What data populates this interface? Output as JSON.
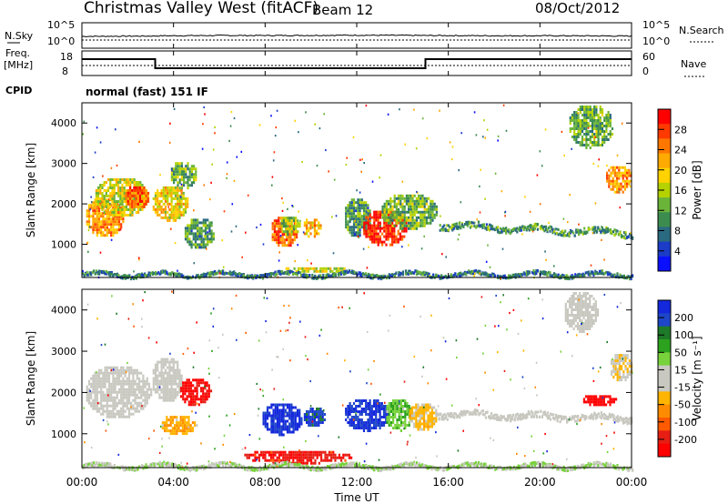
{
  "header": {
    "title": "Christmas Valley West (fitACF)",
    "beam": "Beam 12",
    "date": "08/Oct/2012"
  },
  "labels": {
    "nsky": "N.Sky",
    "freq_line1": "Freq.",
    "freq_line2": "[MHz]",
    "cpid": "CPID",
    "nsearch": "N.Search",
    "nave": "Nave",
    "cpid_value": "normal (fast) 151 IF",
    "nsky_ticks": [
      "10^5",
      "10^0"
    ],
    "freq_ticks": [
      "18",
      "8"
    ],
    "nsearch_ticks": [
      "10^5",
      "10^0"
    ],
    "nave_ticks": [
      "60",
      "0"
    ]
  },
  "colorbars": {
    "power": {
      "label": "Power [dB]",
      "ticks": [
        "28",
        "24",
        "20",
        "16",
        "12",
        "8",
        "4"
      ],
      "colors": [
        "#ff0000",
        "#ff3a00",
        "#ff7700",
        "#ffaa00",
        "#ffd200",
        "#b4d200",
        "#6ab43a",
        "#3c8c50",
        "#2a6a80",
        "#1c3cc8",
        "#0a10ff"
      ]
    },
    "velocity": {
      "label": "Velocity [m s⁻¹]",
      "ticks": [
        "200",
        "100",
        "50",
        "15",
        "-15",
        "-50",
        "-100",
        "-200"
      ],
      "colors": [
        "#1428dc",
        "#1e46c8",
        "#1e7a28",
        "#2ca21e",
        "#78d23c",
        "#c8c8c0",
        "#c8c8c0",
        "#ffb400",
        "#ff8c00",
        "#ff5a00",
        "#e61e14",
        "#ff0000"
      ]
    }
  },
  "axes": {
    "ylabel": "Slant Range [km]",
    "yticks": [
      "4000",
      "3000",
      "2000",
      "1000"
    ],
    "xlabel": "Time UT",
    "xticks": [
      "00:00",
      "04:00",
      "08:00",
      "12:00",
      "16:00",
      "20:00",
      "00:00"
    ]
  },
  "chart_data": [
    {
      "type": "line",
      "panel": "N.Sky / N.Search (log)",
      "y_ticks": [
        "10^0",
        "10^5"
      ],
      "x": [
        0,
        3,
        3.5,
        6,
        9,
        12,
        15,
        18,
        21,
        24
      ],
      "nsky": [
        2.2,
        2.3,
        2.4,
        2.5,
        2.5,
        2.6,
        2.5,
        2.4,
        2.4,
        2.3
      ]
    },
    {
      "type": "line",
      "panel": "Freq [MHz] / Nave",
      "freq_ylim": [
        8,
        18
      ],
      "nave_ylim": [
        0,
        60
      ],
      "segments": [
        {
          "start_hr": 0,
          "end_hr": 3.2,
          "freq_mhz": 15.5
        },
        {
          "start_hr": 3.2,
          "end_hr": 15.0,
          "freq_mhz": 10.5
        },
        {
          "start_hr": 15.0,
          "end_hr": 24,
          "freq_mhz": 15.5
        }
      ],
      "nave_level": 20
    },
    {
      "type": "heatmap",
      "panel": "Power [dB]",
      "xlim_hr": [
        0,
        24
      ],
      "ylim_km": [
        180,
        4500
      ],
      "clim": [
        0,
        30
      ],
      "blobs": [
        {
          "t0": 0.1,
          "t1": 1.8,
          "r0": 1200,
          "r1": 2200,
          "value": 22
        },
        {
          "t0": 0.5,
          "t1": 2.9,
          "r0": 1700,
          "r1": 2700,
          "value": 16
        },
        {
          "t0": 1.8,
          "t1": 2.9,
          "r0": 1900,
          "r1": 2500,
          "value": 24
        },
        {
          "t0": 3.0,
          "t1": 4.6,
          "r0": 1600,
          "r1": 2500,
          "value": 18
        },
        {
          "t0": 3.8,
          "t1": 5.0,
          "r0": 2400,
          "r1": 3100,
          "value": 12
        },
        {
          "t0": 4.4,
          "t1": 5.8,
          "r0": 900,
          "r1": 1700,
          "value": 10
        },
        {
          "t0": 8.2,
          "t1": 9.4,
          "r0": 950,
          "r1": 1750,
          "value": 24
        },
        {
          "t0": 8.6,
          "t1": 9.5,
          "r0": 1250,
          "r1": 1750,
          "value": 14
        },
        {
          "t0": 9.6,
          "t1": 10.4,
          "r0": 1200,
          "r1": 1700,
          "value": 20
        },
        {
          "t0": 11.4,
          "t1": 12.6,
          "r0": 1200,
          "r1": 2200,
          "value": 10
        },
        {
          "t0": 12.2,
          "t1": 14.2,
          "r0": 1000,
          "r1": 1900,
          "value": 28
        },
        {
          "t0": 13.0,
          "t1": 15.5,
          "r0": 1400,
          "r1": 2300,
          "value": 12
        },
        {
          "t0": 8.8,
          "t1": 11.5,
          "r0": 300,
          "r1": 500,
          "value": 16
        },
        {
          "t0": 21.2,
          "t1": 23.2,
          "r0": 3400,
          "r1": 4500,
          "value": 12
        },
        {
          "t0": 22.8,
          "t1": 24,
          "r0": 2300,
          "r1": 3000,
          "value": 22
        }
      ],
      "bands": [
        {
          "t0": 15.6,
          "t1": 24,
          "r_start": 1500,
          "r_end": 1300,
          "width": 150,
          "value": 10
        },
        {
          "t0": 0,
          "t1": 24,
          "r_start": 280,
          "r_end": 280,
          "width": 90,
          "value": 8
        }
      ]
    },
    {
      "type": "heatmap",
      "panel": "Velocity [m s-1]",
      "xlim_hr": [
        0,
        24
      ],
      "ylim_km": [
        180,
        4500
      ],
      "clim": [
        -200,
        200
      ],
      "blobs": [
        {
          "t0": 0.1,
          "t1": 3.0,
          "r0": 1400,
          "r1": 2700,
          "value": 0
        },
        {
          "t0": 3.0,
          "t1": 4.4,
          "r0": 1800,
          "r1": 2900,
          "value": 0
        },
        {
          "t0": 4.2,
          "t1": 5.6,
          "r0": 1700,
          "r1": 2400,
          "value": -180
        },
        {
          "t0": 3.4,
          "t1": 5.0,
          "r0": 1000,
          "r1": 1500,
          "value": -60
        },
        {
          "t0": 7.8,
          "t1": 9.6,
          "r0": 1000,
          "r1": 1800,
          "value": 180
        },
        {
          "t0": 9.6,
          "t1": 10.6,
          "r0": 1200,
          "r1": 1700,
          "value": 150
        },
        {
          "t0": 11.4,
          "t1": 13.4,
          "r0": 1100,
          "r1": 1900,
          "value": 170
        },
        {
          "t0": 13.2,
          "t1": 14.4,
          "r0": 1100,
          "r1": 1900,
          "value": 60
        },
        {
          "t0": 14.2,
          "t1": 15.5,
          "r0": 1100,
          "r1": 1800,
          "value": -40
        },
        {
          "t0": 7.0,
          "t1": 11.8,
          "r0": 300,
          "r1": 650,
          "value": -160
        },
        {
          "t0": 21.0,
          "t1": 22.5,
          "r0": 3500,
          "r1": 4500,
          "value": 0
        },
        {
          "t0": 21.8,
          "t1": 23.3,
          "r0": 1700,
          "r1": 2000,
          "value": -200
        },
        {
          "t0": 23.0,
          "t1": 24,
          "r0": 2300,
          "r1": 3000,
          "value": -30
        }
      ],
      "bands": [
        {
          "t0": 15.5,
          "t1": 24,
          "r_start": 1500,
          "r_end": 1400,
          "width": 150,
          "value": 0
        },
        {
          "t0": 0,
          "t1": 24,
          "r_start": 240,
          "r_end": 240,
          "width": 90,
          "value": 30
        }
      ]
    }
  ]
}
